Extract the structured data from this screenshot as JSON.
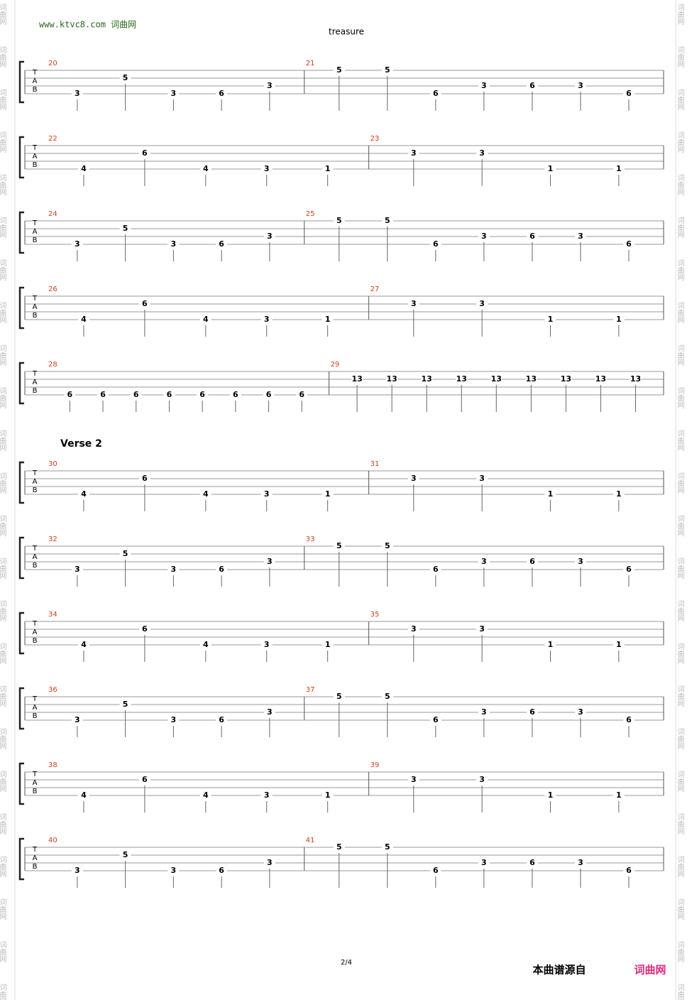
{
  "header": {
    "url": "www.ktvc8.com 词曲网",
    "title": "treasure"
  },
  "tab_clef": [
    "T",
    "A",
    "B"
  ],
  "watermark": "词曲网",
  "systems": [
    {
      "measures": [
        {
          "number": 20,
          "notes": [
            {
              "string": 4,
              "fret": 3
            },
            {
              "string": 2,
              "fret": 5
            },
            {
              "string": 4,
              "fret": 3
            },
            {
              "string": 4,
              "fret": 6
            },
            {
              "string": 3,
              "fret": 3
            }
          ]
        },
        {
          "number": 21,
          "notes": [
            {
              "string": 1,
              "fret": 5
            },
            {
              "string": 1,
              "fret": 5
            },
            {
              "string": 4,
              "fret": 6
            },
            {
              "string": 3,
              "fret": 3
            },
            {
              "string": 3,
              "fret": 6
            },
            {
              "string": 3,
              "fret": 3
            },
            {
              "string": 4,
              "fret": 6
            }
          ]
        }
      ]
    },
    {
      "measures": [
        {
          "number": 22,
          "notes": [
            {
              "string": 4,
              "fret": 4
            },
            {
              "string": 2,
              "fret": 6
            },
            {
              "string": 4,
              "fret": 4
            },
            {
              "string": 4,
              "fret": 3
            },
            {
              "string": 4,
              "fret": 1
            }
          ]
        },
        {
          "number": 23,
          "notes": [
            {
              "string": 2,
              "fret": 3
            },
            {
              "string": 2,
              "fret": 3
            },
            {
              "string": 4,
              "fret": 1
            },
            {
              "string": 4,
              "fret": 1
            }
          ]
        }
      ]
    },
    {
      "measures": [
        {
          "number": 24,
          "notes": [
            {
              "string": 4,
              "fret": 3
            },
            {
              "string": 2,
              "fret": 5
            },
            {
              "string": 4,
              "fret": 3
            },
            {
              "string": 4,
              "fret": 6
            },
            {
              "string": 3,
              "fret": 3
            }
          ]
        },
        {
          "number": 25,
          "notes": [
            {
              "string": 1,
              "fret": 5
            },
            {
              "string": 1,
              "fret": 5
            },
            {
              "string": 4,
              "fret": 6
            },
            {
              "string": 3,
              "fret": 3
            },
            {
              "string": 3,
              "fret": 6
            },
            {
              "string": 3,
              "fret": 3
            },
            {
              "string": 4,
              "fret": 6
            }
          ]
        }
      ]
    },
    {
      "measures": [
        {
          "number": 26,
          "notes": [
            {
              "string": 4,
              "fret": 4
            },
            {
              "string": 2,
              "fret": 6
            },
            {
              "string": 4,
              "fret": 4
            },
            {
              "string": 4,
              "fret": 3
            },
            {
              "string": 4,
              "fret": 1
            }
          ]
        },
        {
          "number": 27,
          "notes": [
            {
              "string": 2,
              "fret": 3
            },
            {
              "string": 2,
              "fret": 3
            },
            {
              "string": 4,
              "fret": 1
            },
            {
              "string": 4,
              "fret": 1
            }
          ]
        }
      ]
    },
    {
      "measures": [
        {
          "number": 28,
          "notes": [
            {
              "string": 4,
              "fret": 6
            },
            {
              "string": 4,
              "fret": 6
            },
            {
              "string": 4,
              "fret": 6
            },
            {
              "string": 4,
              "fret": 6
            },
            {
              "string": 4,
              "fret": 6
            },
            {
              "string": 4,
              "fret": 6
            },
            {
              "string": 4,
              "fret": 6
            },
            {
              "string": 4,
              "fret": 6
            }
          ]
        },
        {
          "number": 29,
          "notes": [
            {
              "string": 2,
              "fret": 13
            },
            {
              "string": 2,
              "fret": 13
            },
            {
              "string": 2,
              "fret": 13
            },
            {
              "string": 2,
              "fret": 13
            },
            {
              "string": 2,
              "fret": 13
            },
            {
              "string": 2,
              "fret": 13
            },
            {
              "string": 2,
              "fret": 13
            },
            {
              "string": 2,
              "fret": 13
            },
            {
              "string": 2,
              "fret": 13
            }
          ]
        }
      ]
    },
    {
      "section": "Verse 2",
      "measures": [
        {
          "number": 30,
          "notes": [
            {
              "string": 4,
              "fret": 4
            },
            {
              "string": 2,
              "fret": 6
            },
            {
              "string": 4,
              "fret": 4
            },
            {
              "string": 4,
              "fret": 3
            },
            {
              "string": 4,
              "fret": 1
            }
          ]
        },
        {
          "number": 31,
          "notes": [
            {
              "string": 2,
              "fret": 3
            },
            {
              "string": 2,
              "fret": 3
            },
            {
              "string": 4,
              "fret": 1
            },
            {
              "string": 4,
              "fret": 1
            }
          ]
        }
      ]
    },
    {
      "measures": [
        {
          "number": 32,
          "notes": [
            {
              "string": 4,
              "fret": 3
            },
            {
              "string": 2,
              "fret": 5
            },
            {
              "string": 4,
              "fret": 3
            },
            {
              "string": 4,
              "fret": 6
            },
            {
              "string": 3,
              "fret": 3
            }
          ]
        },
        {
          "number": 33,
          "notes": [
            {
              "string": 1,
              "fret": 5
            },
            {
              "string": 1,
              "fret": 5
            },
            {
              "string": 4,
              "fret": 6
            },
            {
              "string": 3,
              "fret": 3
            },
            {
              "string": 3,
              "fret": 6
            },
            {
              "string": 3,
              "fret": 3
            },
            {
              "string": 4,
              "fret": 6
            }
          ]
        }
      ]
    },
    {
      "measures": [
        {
          "number": 34,
          "notes": [
            {
              "string": 4,
              "fret": 4
            },
            {
              "string": 2,
              "fret": 6
            },
            {
              "string": 4,
              "fret": 4
            },
            {
              "string": 4,
              "fret": 3
            },
            {
              "string": 4,
              "fret": 1
            }
          ]
        },
        {
          "number": 35,
          "notes": [
            {
              "string": 2,
              "fret": 3
            },
            {
              "string": 2,
              "fret": 3
            },
            {
              "string": 4,
              "fret": 1
            },
            {
              "string": 4,
              "fret": 1
            }
          ]
        }
      ]
    },
    {
      "measures": [
        {
          "number": 36,
          "notes": [
            {
              "string": 4,
              "fret": 3
            },
            {
              "string": 2,
              "fret": 5
            },
            {
              "string": 4,
              "fret": 3
            },
            {
              "string": 4,
              "fret": 6
            },
            {
              "string": 3,
              "fret": 3
            }
          ]
        },
        {
          "number": 37,
          "notes": [
            {
              "string": 1,
              "fret": 5
            },
            {
              "string": 1,
              "fret": 5
            },
            {
              "string": 4,
              "fret": 6
            },
            {
              "string": 3,
              "fret": 3
            },
            {
              "string": 3,
              "fret": 6
            },
            {
              "string": 3,
              "fret": 3
            },
            {
              "string": 4,
              "fret": 6
            }
          ]
        }
      ]
    },
    {
      "measures": [
        {
          "number": 38,
          "notes": [
            {
              "string": 4,
              "fret": 4
            },
            {
              "string": 2,
              "fret": 6
            },
            {
              "string": 4,
              "fret": 4
            },
            {
              "string": 4,
              "fret": 3
            },
            {
              "string": 4,
              "fret": 1
            }
          ]
        },
        {
          "number": 39,
          "notes": [
            {
              "string": 2,
              "fret": 3
            },
            {
              "string": 2,
              "fret": 3
            },
            {
              "string": 4,
              "fret": 1
            },
            {
              "string": 4,
              "fret": 1
            }
          ]
        }
      ]
    },
    {
      "measures": [
        {
          "number": 40,
          "notes": [
            {
              "string": 4,
              "fret": 3
            },
            {
              "string": 2,
              "fret": 5
            },
            {
              "string": 4,
              "fret": 3
            },
            {
              "string": 4,
              "fret": 6
            },
            {
              "string": 3,
              "fret": 3
            }
          ]
        },
        {
          "number": 41,
          "notes": [
            {
              "string": 1,
              "fret": 5
            },
            {
              "string": 1,
              "fret": 5
            },
            {
              "string": 4,
              "fret": 6
            },
            {
              "string": 3,
              "fret": 3
            },
            {
              "string": 3,
              "fret": 6
            },
            {
              "string": 3,
              "fret": 3
            },
            {
              "string": 4,
              "fret": 6
            }
          ]
        }
      ]
    }
  ],
  "footer": {
    "page": "2/4",
    "source": "本曲谱源自",
    "site": "词曲网"
  }
}
